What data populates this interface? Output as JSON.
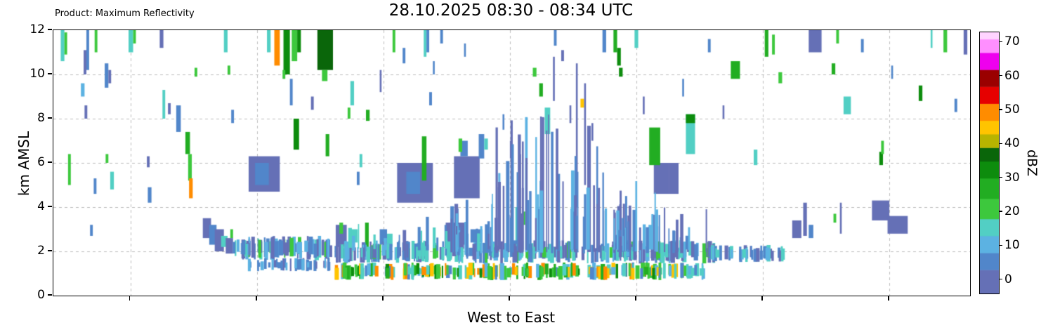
{
  "chart_data": {
    "type": "heatmap",
    "product": "Product: Maximum Reflectivity",
    "title": "28.10.2025 08:30 - 08:34 UTC",
    "xlabel": "West to East",
    "ylabel": "km AMSL",
    "ylim": [
      0,
      12
    ],
    "y_ticks": [
      0,
      2,
      4,
      6,
      8,
      10,
      12
    ],
    "x_gridlines": [
      0.084,
      0.222,
      0.36,
      0.498,
      0.636,
      0.774,
      0.912
    ],
    "grid": true,
    "grid_color": "#bdbdbd",
    "colorbar": {
      "label": "dBZ",
      "ticks": [
        0,
        10,
        20,
        30,
        40,
        50,
        60,
        70
      ],
      "range": [
        -4,
        73
      ],
      "stops": [
        {
          "from": -4,
          "to": 3,
          "color": "#6570b6"
        },
        {
          "from": 3,
          "to": 8,
          "color": "#5186ca"
        },
        {
          "from": 8,
          "to": 13,
          "color": "#5cb2e2"
        },
        {
          "from": 13,
          "to": 18,
          "color": "#52cfc4"
        },
        {
          "from": 18,
          "to": 24,
          "color": "#3dc83d"
        },
        {
          "from": 24,
          "to": 30,
          "color": "#22ad22"
        },
        {
          "from": 30,
          "to": 35,
          "color": "#0d8c0d"
        },
        {
          "from": 35,
          "to": 39,
          "color": "#0a660a"
        },
        {
          "from": 39,
          "to": 43,
          "color": "#b8b400"
        },
        {
          "from": 43,
          "to": 47,
          "color": "#ffc400"
        },
        {
          "from": 47,
          "to": 52,
          "color": "#ff8c00"
        },
        {
          "from": 52,
          "to": 57,
          "color": "#e60000"
        },
        {
          "from": 57,
          "to": 62,
          "color": "#9a0000"
        },
        {
          "from": 62,
          "to": 67,
          "color": "#ee00ee"
        },
        {
          "from": 67,
          "to": 71,
          "color": "#ff8fff"
        },
        {
          "from": 71,
          "to": 73,
          "color": "#ffd4ff"
        }
      ]
    },
    "echoes": [
      [
        0.008,
        0.012,
        10.6,
        12.0,
        15
      ],
      [
        0.012,
        0.015,
        10.9,
        11.9,
        21
      ],
      [
        0.016,
        0.019,
        5.0,
        6.4,
        21
      ],
      [
        0.03,
        0.034,
        9.0,
        9.6,
        11
      ],
      [
        0.033,
        0.036,
        10.0,
        11.1,
        2
      ],
      [
        0.036,
        0.039,
        10.2,
        12.0,
        6
      ],
      [
        0.034,
        0.037,
        8.0,
        8.6,
        2
      ],
      [
        0.04,
        0.043,
        2.7,
        3.2,
        6
      ],
      [
        0.045,
        0.048,
        11.0,
        12.0,
        21
      ],
      [
        0.044,
        0.047,
        4.6,
        5.3,
        6
      ],
      [
        0.056,
        0.06,
        9.4,
        10.5,
        6
      ],
      [
        0.06,
        0.063,
        9.6,
        10.2,
        2
      ],
      [
        0.057,
        0.06,
        6.0,
        6.4,
        21
      ],
      [
        0.062,
        0.066,
        4.8,
        5.6,
        15
      ],
      [
        0.082,
        0.087,
        11.0,
        12.0,
        15
      ],
      [
        0.087,
        0.09,
        11.4,
        12.0,
        21
      ],
      [
        0.102,
        0.105,
        5.8,
        6.3,
        2
      ],
      [
        0.103,
        0.107,
        4.2,
        4.9,
        6
      ],
      [
        0.116,
        0.12,
        11.2,
        12.0,
        2
      ],
      [
        0.119,
        0.122,
        8.0,
        9.3,
        15
      ],
      [
        0.125,
        0.128,
        8.2,
        8.7,
        2
      ],
      [
        0.134,
        0.139,
        7.4,
        8.6,
        6
      ],
      [
        0.144,
        0.149,
        6.4,
        7.4,
        26
      ],
      [
        0.147,
        0.151,
        5.2,
        6.4,
        21
      ],
      [
        0.148,
        0.152,
        4.4,
        5.3,
        48
      ],
      [
        0.154,
        0.157,
        9.9,
        10.3,
        21
      ],
      [
        0.186,
        0.19,
        11.0,
        12.0,
        15
      ],
      [
        0.19,
        0.193,
        10.0,
        10.4,
        21
      ],
      [
        0.194,
        0.197,
        7.8,
        8.4,
        6
      ],
      [
        0.163,
        0.172,
        2.6,
        3.5,
        2
      ],
      [
        0.17,
        0.178,
        2.3,
        3.2,
        6
      ],
      [
        0.176,
        0.186,
        2.0,
        3.0,
        2
      ],
      [
        0.183,
        0.19,
        2.2,
        2.7,
        15
      ],
      [
        0.188,
        0.196,
        1.9,
        2.6,
        2
      ],
      [
        0.193,
        0.196,
        2.6,
        3.0,
        21
      ],
      [
        0.213,
        0.247,
        4.7,
        6.3,
        2
      ],
      [
        0.22,
        0.235,
        5.0,
        6.0,
        6
      ],
      [
        0.375,
        0.414,
        4.2,
        6.0,
        2
      ],
      [
        0.385,
        0.4,
        4.6,
        5.6,
        6
      ],
      [
        0.437,
        0.465,
        4.4,
        6.3,
        2
      ],
      [
        0.444,
        0.452,
        6.3,
        7.0,
        6
      ],
      [
        0.655,
        0.672,
        4.6,
        6.0,
        2
      ],
      [
        0.672,
        0.682,
        4.6,
        6.0,
        2
      ],
      [
        0.233,
        0.237,
        11.0,
        12.0,
        15
      ],
      [
        0.241,
        0.247,
        10.4,
        12.0,
        48
      ],
      [
        0.251,
        0.258,
        10.0,
        12.0,
        32
      ],
      [
        0.26,
        0.266,
        10.6,
        12.0,
        21
      ],
      [
        0.266,
        0.27,
        11.0,
        12.0,
        32
      ],
      [
        0.25,
        0.253,
        9.8,
        10.2,
        21
      ],
      [
        0.258,
        0.261,
        8.6,
        9.8,
        6
      ],
      [
        0.262,
        0.268,
        6.6,
        8.0,
        32
      ],
      [
        0.281,
        0.284,
        8.4,
        9.0,
        2
      ],
      [
        0.288,
        0.305,
        10.2,
        12.0,
        37
      ],
      [
        0.293,
        0.299,
        9.7,
        10.2,
        21
      ],
      [
        0.297,
        0.301,
        6.3,
        7.3,
        26
      ],
      [
        0.324,
        0.328,
        8.6,
        9.7,
        15
      ],
      [
        0.321,
        0.324,
        8.0,
        8.5,
        21
      ],
      [
        0.334,
        0.337,
        5.8,
        6.4,
        15
      ],
      [
        0.331,
        0.334,
        5.0,
        5.6,
        6
      ],
      [
        0.341,
        0.345,
        7.9,
        8.4,
        26
      ],
      [
        0.356,
        0.358,
        9.2,
        10.2,
        2
      ],
      [
        0.37,
        0.373,
        11.0,
        12.0,
        21
      ],
      [
        0.381,
        0.384,
        10.5,
        11.2,
        6
      ],
      [
        0.402,
        0.407,
        5.2,
        7.2,
        26
      ],
      [
        0.404,
        0.407,
        10.8,
        12.0,
        15
      ],
      [
        0.407,
        0.41,
        11.0,
        12.0,
        6
      ],
      [
        0.41,
        0.413,
        8.6,
        9.2,
        6
      ],
      [
        0.414,
        0.416,
        10.0,
        10.6,
        6
      ],
      [
        0.422,
        0.425,
        11.4,
        12.0,
        6
      ],
      [
        0.442,
        0.446,
        6.5,
        7.1,
        21
      ],
      [
        0.448,
        0.45,
        10.8,
        11.4,
        6
      ],
      [
        0.464,
        0.47,
        6.2,
        7.3,
        6
      ],
      [
        0.47,
        0.474,
        6.6,
        7.1,
        15
      ],
      [
        0.49,
        0.492,
        7.5,
        8.2,
        6
      ],
      [
        0.498,
        0.5,
        6.2,
        7.0,
        2
      ],
      [
        0.523,
        0.527,
        9.9,
        10.3,
        21
      ],
      [
        0.53,
        0.534,
        9.0,
        9.6,
        26
      ],
      [
        0.536,
        0.542,
        7.3,
        8.5,
        15
      ],
      [
        0.545,
        0.547,
        8.8,
        10.8,
        2
      ],
      [
        0.546,
        0.549,
        11.3,
        12.0,
        6
      ],
      [
        0.554,
        0.557,
        10.6,
        11.1,
        2
      ],
      [
        0.563,
        0.565,
        7.8,
        8.6,
        2
      ],
      [
        0.57,
        0.572,
        4.0,
        10.5,
        2
      ],
      [
        0.575,
        0.579,
        8.5,
        8.9,
        44
      ],
      [
        0.579,
        0.581,
        5.0,
        9.6,
        2
      ],
      [
        0.587,
        0.589,
        7.0,
        7.8,
        2
      ],
      [
        0.599,
        0.603,
        11.0,
        12.0,
        6
      ],
      [
        0.611,
        0.615,
        11.0,
        12.0,
        26
      ],
      [
        0.615,
        0.619,
        10.4,
        11.2,
        32
      ],
      [
        0.617,
        0.621,
        9.9,
        10.3,
        32
      ],
      [
        0.634,
        0.638,
        11.2,
        12.0,
        15
      ],
      [
        0.643,
        0.645,
        8.2,
        9.0,
        2
      ],
      [
        0.65,
        0.662,
        5.9,
        7.6,
        26
      ],
      [
        0.686,
        0.688,
        9.0,
        9.8,
        6
      ],
      [
        0.69,
        0.7,
        6.4,
        8.2,
        15
      ],
      [
        0.69,
        0.7,
        7.8,
        8.2,
        32
      ],
      [
        0.714,
        0.717,
        11.0,
        11.6,
        6
      ],
      [
        0.73,
        0.732,
        8.0,
        8.6,
        2
      ],
      [
        0.739,
        0.749,
        9.8,
        10.6,
        26
      ],
      [
        0.764,
        0.768,
        5.9,
        6.6,
        15
      ],
      [
        0.776,
        0.78,
        10.8,
        12.0,
        26
      ],
      [
        0.784,
        0.787,
        10.9,
        11.8,
        21
      ],
      [
        0.791,
        0.795,
        9.6,
        10.1,
        21
      ],
      [
        0.824,
        0.838,
        11.0,
        12.0,
        2
      ],
      [
        0.849,
        0.853,
        10.0,
        10.5,
        26
      ],
      [
        0.854,
        0.857,
        11.4,
        12.0,
        21
      ],
      [
        0.862,
        0.87,
        8.2,
        9.0,
        15
      ],
      [
        0.881,
        0.884,
        11.0,
        11.6,
        6
      ],
      [
        0.901,
        0.905,
        5.9,
        6.5,
        32
      ],
      [
        0.903,
        0.906,
        6.4,
        7.0,
        21
      ],
      [
        0.914,
        0.916,
        9.8,
        10.4,
        6
      ],
      [
        0.944,
        0.948,
        8.8,
        9.5,
        32
      ],
      [
        0.957,
        0.959,
        11.2,
        12.0,
        15
      ],
      [
        0.971,
        0.975,
        11.0,
        12.0,
        21
      ],
      [
        0.983,
        0.986,
        8.3,
        8.9,
        6
      ],
      [
        0.993,
        0.997,
        10.9,
        12.0,
        2
      ],
      [
        0.308,
        0.32,
        2.2,
        3.2,
        2
      ],
      [
        0.312,
        0.316,
        2.8,
        3.3,
        21
      ],
      [
        0.322,
        0.332,
        2.4,
        3.0,
        15
      ],
      [
        0.34,
        0.344,
        2.0,
        3.3,
        26
      ],
      [
        0.356,
        0.364,
        2.3,
        3.0,
        6
      ],
      [
        0.364,
        0.37,
        2.2,
        2.8,
        15
      ],
      [
        0.428,
        0.452,
        2.3,
        3.3,
        2
      ],
      [
        0.455,
        0.468,
        2.4,
        3.0,
        6
      ],
      [
        0.504,
        0.508,
        2.0,
        4.0,
        15
      ],
      [
        0.512,
        0.515,
        3.2,
        3.8,
        21
      ],
      [
        0.806,
        0.816,
        2.6,
        3.4,
        2
      ],
      [
        0.818,
        0.822,
        2.7,
        4.2,
        2
      ],
      [
        0.824,
        0.829,
        2.6,
        3.2,
        6
      ],
      [
        0.851,
        0.854,
        3.3,
        3.7,
        21
      ],
      [
        0.858,
        0.86,
        2.8,
        4.2,
        2
      ],
      [
        0.893,
        0.912,
        3.4,
        4.3,
        2
      ],
      [
        0.91,
        0.932,
        2.8,
        3.6,
        2
      ]
    ],
    "bands": [
      {
        "x0": 0.195,
        "x1": 0.305,
        "yb": 1.6,
        "yt": 2.7,
        "n": 70,
        "w": [
          0.0015,
          0.005
        ],
        "dbz": [
          2,
          2,
          6,
          6,
          11,
          15,
          21
        ],
        "seed": 11
      },
      {
        "x0": 0.21,
        "x1": 0.3,
        "yb": 1.1,
        "yt": 1.7,
        "n": 35,
        "w": [
          0.0015,
          0.004
        ],
        "dbz": [
          2,
          6,
          6,
          11
        ],
        "seed": 55
      },
      {
        "x0": 0.3,
        "x1": 0.72,
        "yb": 1.45,
        "yt": 2.5,
        "n": 260,
        "w": [
          0.0015,
          0.005
        ],
        "dbz": [
          2,
          2,
          2,
          6,
          6,
          11,
          11,
          15,
          15,
          21
        ],
        "seed": 22
      },
      {
        "x0": 0.305,
        "x1": 0.71,
        "yb": 0.7,
        "yt": 1.5,
        "n": 210,
        "w": [
          0.0015,
          0.005
        ],
        "dbz": [
          6,
          11,
          15,
          15,
          21,
          21,
          26,
          32,
          44,
          48
        ],
        "seed": 33
      },
      {
        "x0": 0.715,
        "x1": 0.795,
        "yb": 1.5,
        "yt": 2.3,
        "n": 45,
        "w": [
          0.0015,
          0.005
        ],
        "dbz": [
          2,
          6,
          6,
          11,
          15
        ],
        "seed": 44
      },
      {
        "x0": 0.478,
        "x1": 0.6,
        "yb": 2.3,
        "yt": [
          3.5,
          8.2
        ],
        "n": 60,
        "w": [
          0.0012,
          0.004
        ],
        "dbz": [
          2,
          2,
          2,
          6,
          6,
          11
        ],
        "seed": 66,
        "columns": true
      },
      {
        "x0": 0.598,
        "x1": 0.66,
        "yb": 2.3,
        "yt": [
          3.0,
          5.2
        ],
        "n": 26,
        "w": [
          0.0012,
          0.004
        ],
        "dbz": [
          2,
          2,
          6,
          11
        ],
        "seed": 77,
        "columns": true
      },
      {
        "x0": 0.433,
        "x1": 0.478,
        "yb": 2.2,
        "yt": [
          2.8,
          4.5
        ],
        "n": 18,
        "w": [
          0.0012,
          0.004
        ],
        "dbz": [
          2,
          6,
          11
        ],
        "seed": 88,
        "columns": true
      },
      {
        "x0": 0.32,
        "x1": 0.475,
        "yb": 2.4,
        "yt": [
          2.6,
          3.6
        ],
        "n": 22,
        "w": [
          0.0012,
          0.004
        ],
        "dbz": [
          2,
          6,
          11,
          15
        ],
        "seed": 99,
        "columns": true
      },
      {
        "x0": 0.6,
        "x1": 0.72,
        "yb": 2.3,
        "yt": [
          2.6,
          4.0
        ],
        "n": 20,
        "w": [
          0.0012,
          0.004
        ],
        "dbz": [
          2,
          6,
          11
        ],
        "seed": 101,
        "columns": true
      }
    ]
  }
}
